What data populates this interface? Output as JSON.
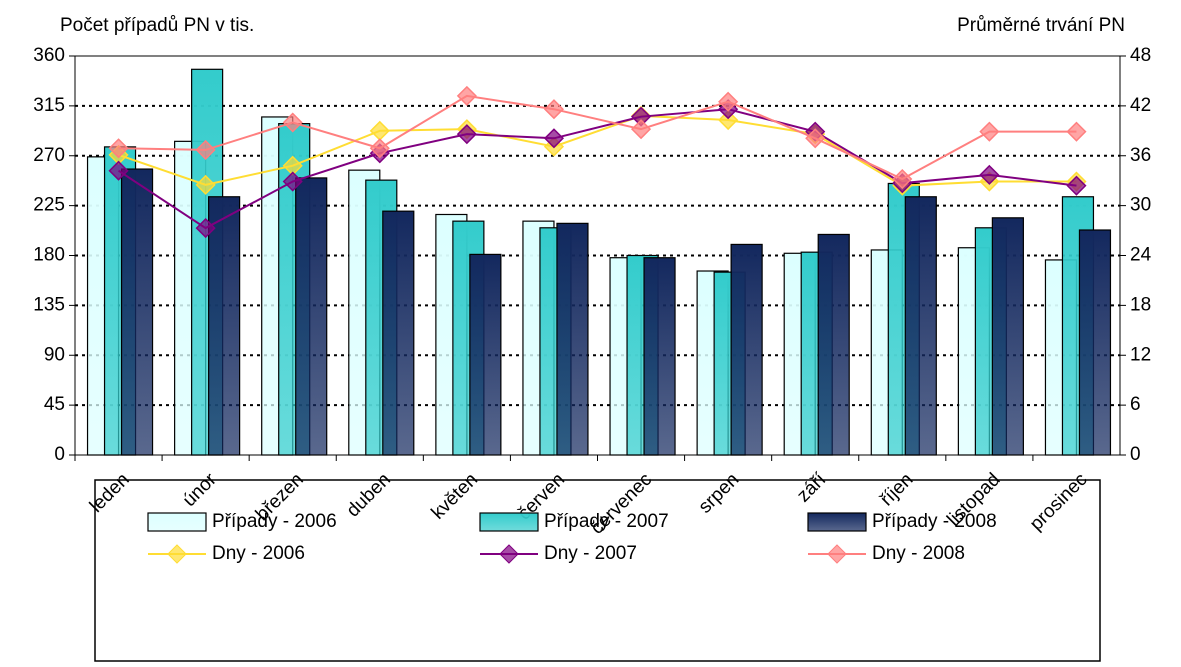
{
  "chart_data": {
    "type": "bar_line",
    "y_label": "Počet případů PN v tis.",
    "y2_label": "Průměrné trvání PN",
    "categories": [
      "leden",
      "únor",
      "březen",
      "duben",
      "květen",
      "červen",
      "červenec",
      "srpen",
      "září",
      "říjen",
      "listopad",
      "prosinec"
    ],
    "ylim": [
      0,
      360
    ],
    "yticks": [
      0,
      45,
      90,
      135,
      180,
      225,
      270,
      315,
      360
    ],
    "y2lim": [
      0,
      48
    ],
    "y2ticks": [
      0,
      6,
      12,
      18,
      24,
      30,
      36,
      42,
      48
    ],
    "grid": true,
    "series": [
      {
        "name": "Případy - 2006",
        "type": "bar",
        "color": "#dcffff",
        "values": [
          269,
          283,
          305,
          257,
          217,
          211,
          178,
          166,
          182,
          185,
          187,
          176
        ]
      },
      {
        "name": "Případy - 2007",
        "type": "bar",
        "color": "#33cccc",
        "values": [
          278,
          348,
          299,
          248,
          211,
          205,
          180,
          165,
          183,
          245,
          205,
          233
        ]
      },
      {
        "name": "Případy - 2008",
        "type": "bar",
        "color": "#13285e",
        "values": [
          258,
          233,
          250,
          220,
          181,
          209,
          178,
          190,
          199,
          233,
          214,
          203
        ]
      },
      {
        "name": "Dny - 2006",
        "type": "line",
        "axis": "y2",
        "color": "#ffdd33",
        "values": [
          36.1,
          32.5,
          34.8,
          39.0,
          39.2,
          37.1,
          40.8,
          40.3,
          38.6,
          32.4,
          32.9,
          32.9
        ]
      },
      {
        "name": "Dny - 2007",
        "type": "line",
        "axis": "y2",
        "color": "#800080",
        "values": [
          34.2,
          27.3,
          32.9,
          36.3,
          38.6,
          38.1,
          40.7,
          41.6,
          38.9,
          32.7,
          33.7,
          32.4
        ]
      },
      {
        "name": "Dny - 2008",
        "type": "line",
        "axis": "y2",
        "color": "#ff7f7f",
        "values": [
          36.9,
          36.7,
          40.0,
          36.9,
          43.2,
          41.6,
          39.2,
          42.5,
          38.1,
          33.2,
          38.9,
          38.9
        ]
      }
    ]
  }
}
